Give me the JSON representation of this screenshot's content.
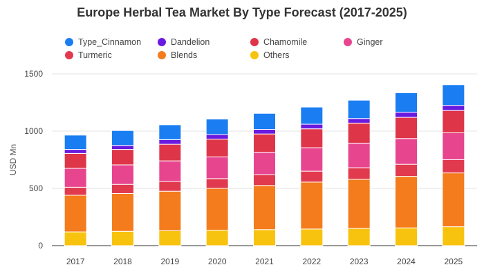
{
  "chart_data": {
    "type": "bar",
    "stacked": true,
    "title": "Europe Herbal Tea Market By Type Forecast (2017-2025)",
    "xlabel": "",
    "ylabel": "USD Mn",
    "ylim": [
      0,
      1500
    ],
    "yticks": [
      0,
      500,
      1000,
      1500
    ],
    "grid": true,
    "legend_position": "top",
    "categories": [
      "2017",
      "2018",
      "2019",
      "2020",
      "2021",
      "2022",
      "2023",
      "2024",
      "2025"
    ],
    "series": [
      {
        "name": "Others",
        "color": "#f8c30e",
        "values": [
          120,
          125,
          130,
          135,
          140,
          145,
          150,
          155,
          165
        ]
      },
      {
        "name": "Blends",
        "color": "#f47c1c",
        "values": [
          320,
          330,
          345,
          365,
          385,
          410,
          430,
          450,
          470
        ]
      },
      {
        "name": "Turmeric",
        "color": "#e13a4e",
        "values": [
          70,
          80,
          85,
          85,
          95,
          95,
          100,
          105,
          115
        ]
      },
      {
        "name": "Ginger",
        "color": "#e8458f",
        "values": [
          165,
          170,
          180,
          190,
          195,
          205,
          215,
          225,
          235
        ]
      },
      {
        "name": "Chamomile",
        "color": "#df3548",
        "values": [
          130,
          135,
          145,
          155,
          160,
          165,
          175,
          185,
          195
        ]
      },
      {
        "name": "Dandelion",
        "color": "#6a1ae0",
        "values": [
          35,
          35,
          40,
          40,
          40,
          40,
          40,
          45,
          45
        ]
      },
      {
        "name": "Type_Cinnamon",
        "color": "#1a7ef2",
        "values": [
          125,
          130,
          130,
          135,
          140,
          150,
          160,
          170,
          180
        ]
      }
    ],
    "legend_order": [
      "Type_Cinnamon",
      "Dandelion",
      "Chamomile",
      "Ginger",
      "Turmeric",
      "Blends",
      "Others"
    ]
  }
}
